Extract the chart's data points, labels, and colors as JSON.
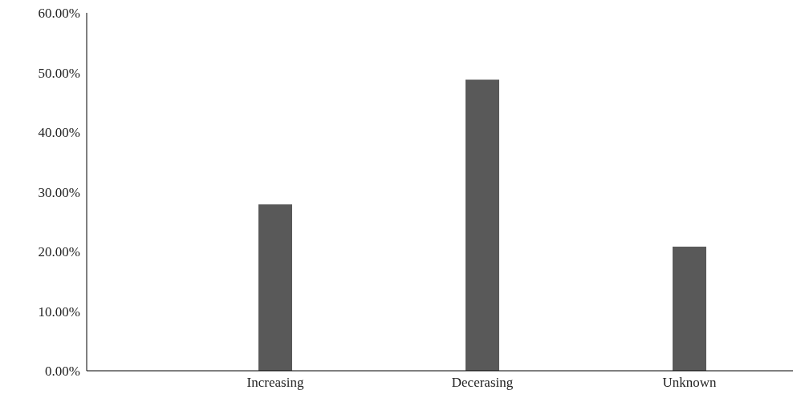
{
  "chart_data": {
    "type": "bar",
    "categories": [
      "Increasing",
      "Decerasing",
      "Unknown"
    ],
    "values": [
      27.9,
      48.8,
      20.8
    ],
    "color": "#595959",
    "ylim": [
      0,
      60
    ],
    "yticks": [
      {
        "value": 0,
        "label": "0.00%"
      },
      {
        "value": 10,
        "label": "10.00%"
      },
      {
        "value": 20,
        "label": "20.00%"
      },
      {
        "value": 30,
        "label": "30.00%"
      },
      {
        "value": 40,
        "label": "40.00%"
      },
      {
        "value": 50,
        "label": "50.00%"
      },
      {
        "value": 60,
        "label": "60.00%"
      }
    ],
    "grid": false,
    "legend": false
  }
}
